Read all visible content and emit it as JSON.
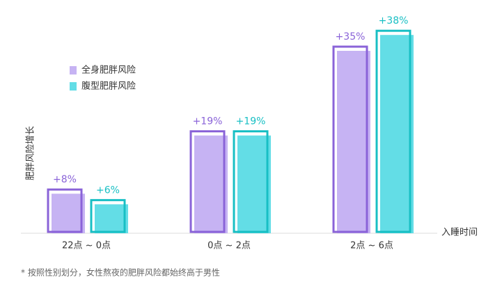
{
  "chart_data": {
    "type": "bar",
    "y_label": "肥胖风险增长",
    "x_label": "入睡时间",
    "categories": [
      "22点 ~ 0点",
      "0点 ~ 2点",
      "2点 ~ 6点"
    ],
    "series": [
      {
        "name": "全身肥胖风险",
        "color": "#8a63d8",
        "fill_color": "#c6b3f3",
        "values": [
          8,
          19,
          35
        ],
        "value_labels": [
          "+8%",
          "+19%",
          "+35%"
        ]
      },
      {
        "name": "腹型肥胖风险",
        "color": "#18bfc4",
        "fill_color": "#63dde6",
        "values": [
          6,
          19,
          38
        ],
        "value_labels": [
          "+6%",
          "+19%",
          "+38%"
        ]
      }
    ],
    "footnote": "* 按照性别划分，女性熬夜的肥胖风险都始终高于男性"
  }
}
